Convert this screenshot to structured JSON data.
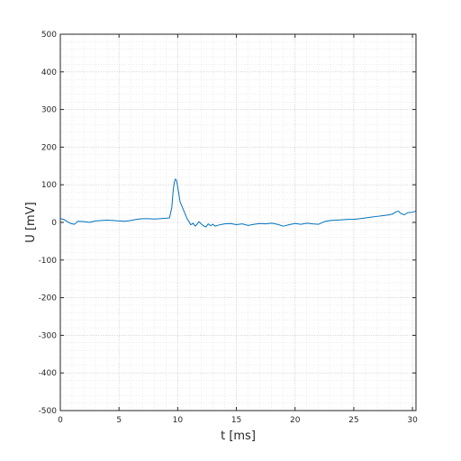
{
  "chart_data": {
    "type": "line",
    "title": "",
    "xlabel": "t [ms]",
    "ylabel": "U [mV]",
    "xlim": [
      0,
      30.3
    ],
    "ylim": [
      -500,
      500
    ],
    "x_ticks": [
      0,
      5,
      10,
      15,
      20,
      25,
      30
    ],
    "y_ticks": [
      -500,
      -400,
      -300,
      -200,
      -100,
      0,
      100,
      200,
      300,
      400,
      500
    ],
    "grid": true,
    "minor_grid": true,
    "line_color": "#0072BD",
    "series": [
      {
        "x": [
          0,
          0.3,
          0.6,
          0.9,
          1.2,
          1.5,
          2,
          2.5,
          3,
          3.5,
          4,
          4.5,
          5,
          5.5,
          6,
          6.5,
          7,
          7.5,
          8,
          8.5,
          9,
          9.3,
          9.5,
          9.6,
          9.7,
          9.8,
          9.9,
          10,
          10.1,
          10.2,
          10.4,
          10.6,
          10.8,
          11,
          11.1,
          11.2,
          11.3,
          11.5,
          11.7,
          11.8,
          12,
          12.2,
          12.4,
          12.6,
          12.8,
          13,
          13.2,
          13.5,
          13.8,
          14,
          14.5,
          15,
          15.5,
          16,
          16.5,
          17,
          17.5,
          18,
          18.5,
          19,
          19.5,
          20,
          20.5,
          21,
          21.5,
          22,
          22.5,
          23,
          23.5,
          24,
          24.5,
          25,
          25.5,
          26,
          26.5,
          27,
          27.5,
          28,
          28.3,
          28.6,
          28.8,
          29,
          29.3,
          29.6,
          30,
          30.3
        ],
        "y": [
          10,
          8,
          2,
          -3,
          -5,
          3,
          2,
          0,
          4,
          5,
          6,
          5,
          4,
          3,
          5,
          8,
          10,
          10,
          9,
          10,
          11,
          12,
          40,
          80,
          105,
          115,
          112,
          95,
          75,
          55,
          40,
          25,
          10,
          0,
          -6,
          -5,
          -2,
          -10,
          -3,
          2,
          -4,
          -9,
          -12,
          -4,
          -9,
          -5,
          -10,
          -7,
          -5,
          -4,
          -3,
          -6,
          -4,
          -8,
          -5,
          -3,
          -4,
          -2,
          -5,
          -10,
          -6,
          -3,
          -5,
          -2,
          -4,
          -5,
          2,
          5,
          6,
          7,
          8,
          8,
          10,
          12,
          14,
          16,
          18,
          20,
          22,
          28,
          30,
          24,
          20,
          26,
          27,
          30
        ]
      }
    ]
  }
}
